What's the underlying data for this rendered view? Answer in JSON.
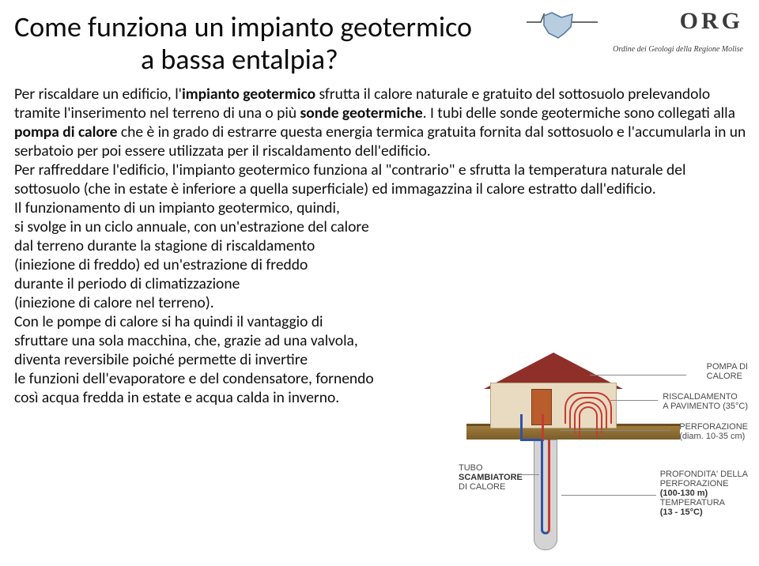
{
  "title": {
    "line1": "Come funziona un impianto geotermico",
    "line2": "a bassa entalpia?"
  },
  "logo": {
    "acronym": "ORG",
    "subtitle": "Ordine dei Geologi della Regione Molise",
    "map_fill": "#b8cde0",
    "map_stroke": "#5a7da0"
  },
  "paragraphs": {
    "full": "Per riscaldare un edificio, l'<b>impianto geotermico</b> sfrutta il calore naturale e gratuito del sottosuolo prelevandolo tramite l'inserimento nel terreno di una o più <b>sonde geotermiche</b>. I tubi delle sonde geotermiche sono collegati alla <b>pompa di calore</b> che è in grado di estrarre questa energia termica gratuita fornita dal sottosuolo e l'accumularla in un serbatoio per poi essere utilizzata per il riscaldamento dell'edificio.<br>Per raffreddare l'edificio, l'impianto geotermico funziona al \"contrario\" e sfrutta la temperatura naturale del sottosuolo (che in estate è inferiore a quella superficiale)  ed immagazzina il calore estratto dall'edificio.",
    "narrow": "Il funzionamento di un impianto geotermico, quindi,<br>si svolge in un ciclo annuale, con un'estrazione del calore<br>dal terreno durante la stagione di riscaldamento<br>(iniezione di freddo) ed un'estrazione di freddo<br>durante il periodo di climatizzazione<br>(iniezione di calore nel terreno).<br>Con le pompe di calore si ha quindi il vantaggio di<br>sfruttare una sola macchina, che, grazie ad una valvola,<br>diventa reversibile poiché permette di invertire<br>le funzioni dell'evaporatore e del condensatore, fornendo<br>così acqua fredda in estate e acqua calda in inverno."
  },
  "diagram": {
    "labels": {
      "pompa_t": "POMPA DI",
      "pompa_b": "CALORE",
      "risc_t": "RISCALDAMENTO",
      "risc_b": "A PAVIMENTO (35°C)",
      "perf_t": "PERFORAZIONE",
      "perf_b": "(diam. 10-35 cm)",
      "tubo_t": "TUBO",
      "tubo_m": "SCAMBIATORE",
      "tubo_b": "DI CALORE",
      "prof_t": "PROFONDITA' DELLA",
      "prof_m": "PERFORAZIONE",
      "prof_b1": "(100-130 m)",
      "prof_b2": "TEMPERATURA",
      "prof_b3": "(13 - 15°C)"
    },
    "colors": {
      "roof": "#8f2f29",
      "wall": "#e8dbc2",
      "pump": "#b95d2c",
      "hot": "#c63a32",
      "cold": "#2f53a5",
      "ground_top": "#6b4f22",
      "ground": "#9e7c3d",
      "borehole": "#d4d4d4"
    }
  },
  "text_color": "#0f0f0f",
  "background_color": "#ffffff"
}
